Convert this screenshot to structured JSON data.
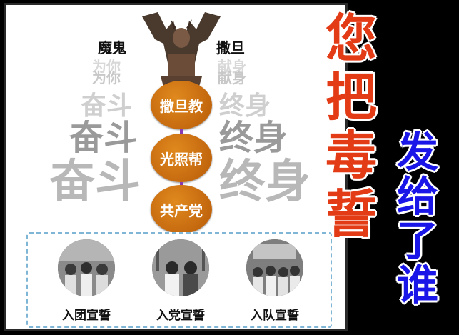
{
  "left": {
    "top_left_label": "魔鬼",
    "top_right_label": "撒旦",
    "left_column": [
      "为你",
      "为你",
      "奋斗",
      "奋斗",
      "奋斗"
    ],
    "right_column": [
      "献身",
      "献身",
      "终身",
      "终身",
      "终身"
    ],
    "chain": [
      "撒旦教",
      "光照帮",
      "共产党"
    ],
    "photos": [
      {
        "caption": "入团宣誓"
      },
      {
        "caption": "入党宣誓"
      },
      {
        "caption": "入队宣誓"
      }
    ]
  },
  "right": {
    "red_chars": [
      "您",
      "把",
      "毒",
      "誓"
    ],
    "blue_chars": [
      "发",
      "给",
      "了",
      "谁"
    ]
  },
  "colors": {
    "red": "#e33b16",
    "blue": "#1b16e8",
    "orange": "#c96a10",
    "purple_arrow": "#8a3bb3"
  }
}
